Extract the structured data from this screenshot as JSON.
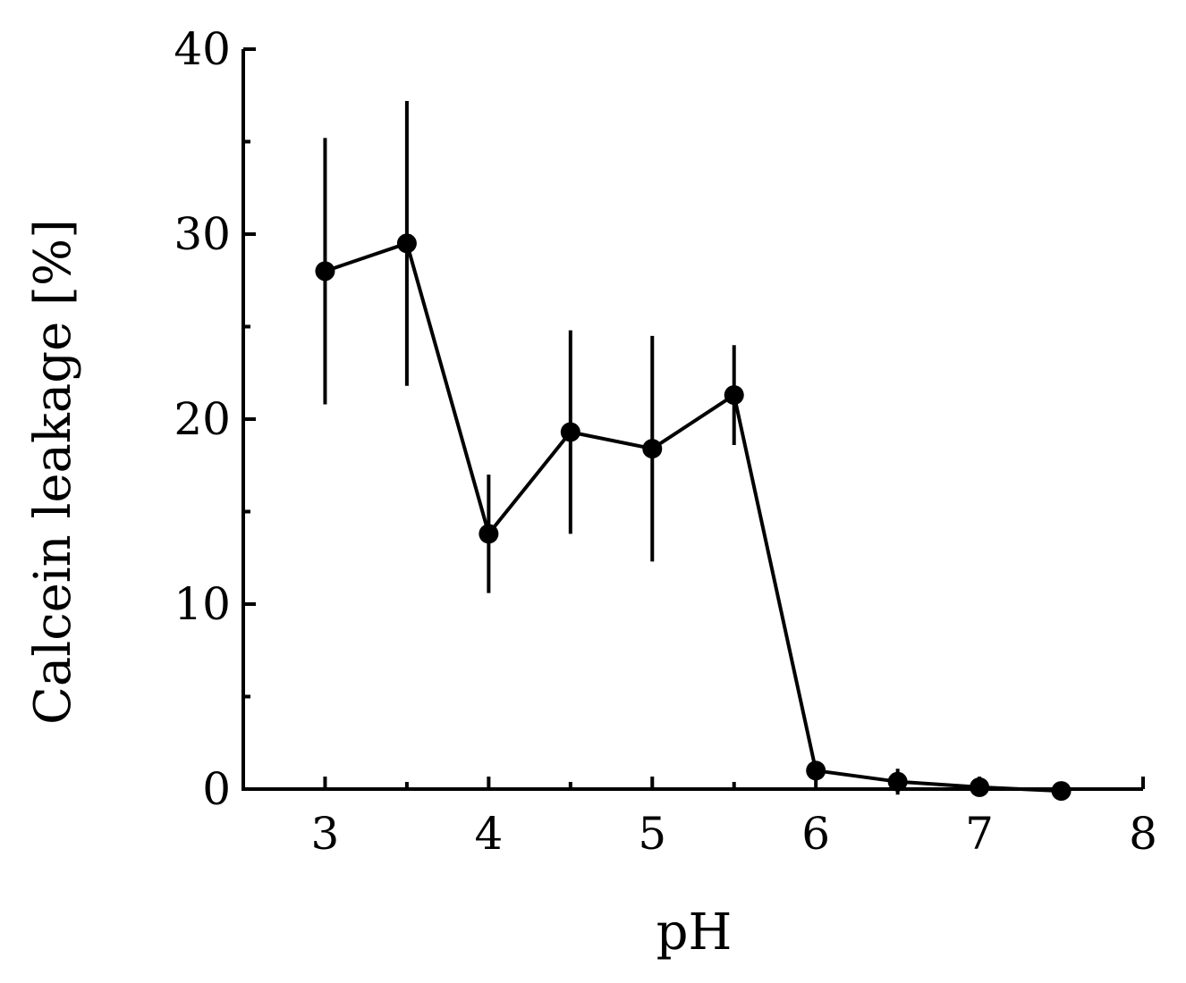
{
  "chart_data": {
    "type": "line",
    "title": "",
    "xlabel": "pH",
    "ylabel": "Calcein leakage [%]",
    "xlim": [
      2.5,
      8
    ],
    "ylim": [
      0,
      40
    ],
    "x_ticks": [
      3,
      4,
      5,
      6,
      7,
      8
    ],
    "y_ticks": [
      0,
      10,
      20,
      30,
      40
    ],
    "x_minor_ticks": [
      3.5,
      4.5,
      5.5,
      6.5,
      7.5
    ],
    "y_minor_ticks": [
      5,
      15,
      25,
      35
    ],
    "grid": false,
    "legend": "none",
    "series": [
      {
        "x": [
          3,
          3.5,
          4,
          4.5,
          5,
          5.5,
          6,
          6.5,
          7,
          7.5
        ],
        "y": [
          28.0,
          29.5,
          13.8,
          19.3,
          18.4,
          21.3,
          1.0,
          0.4,
          0.1,
          -0.1
        ],
        "error": [
          7.2,
          7.7,
          3.2,
          5.5,
          6.1,
          2.7,
          0.4,
          0.7,
          0.4,
          0.1
        ],
        "color": "#000000",
        "marker": "circle"
      }
    ]
  }
}
